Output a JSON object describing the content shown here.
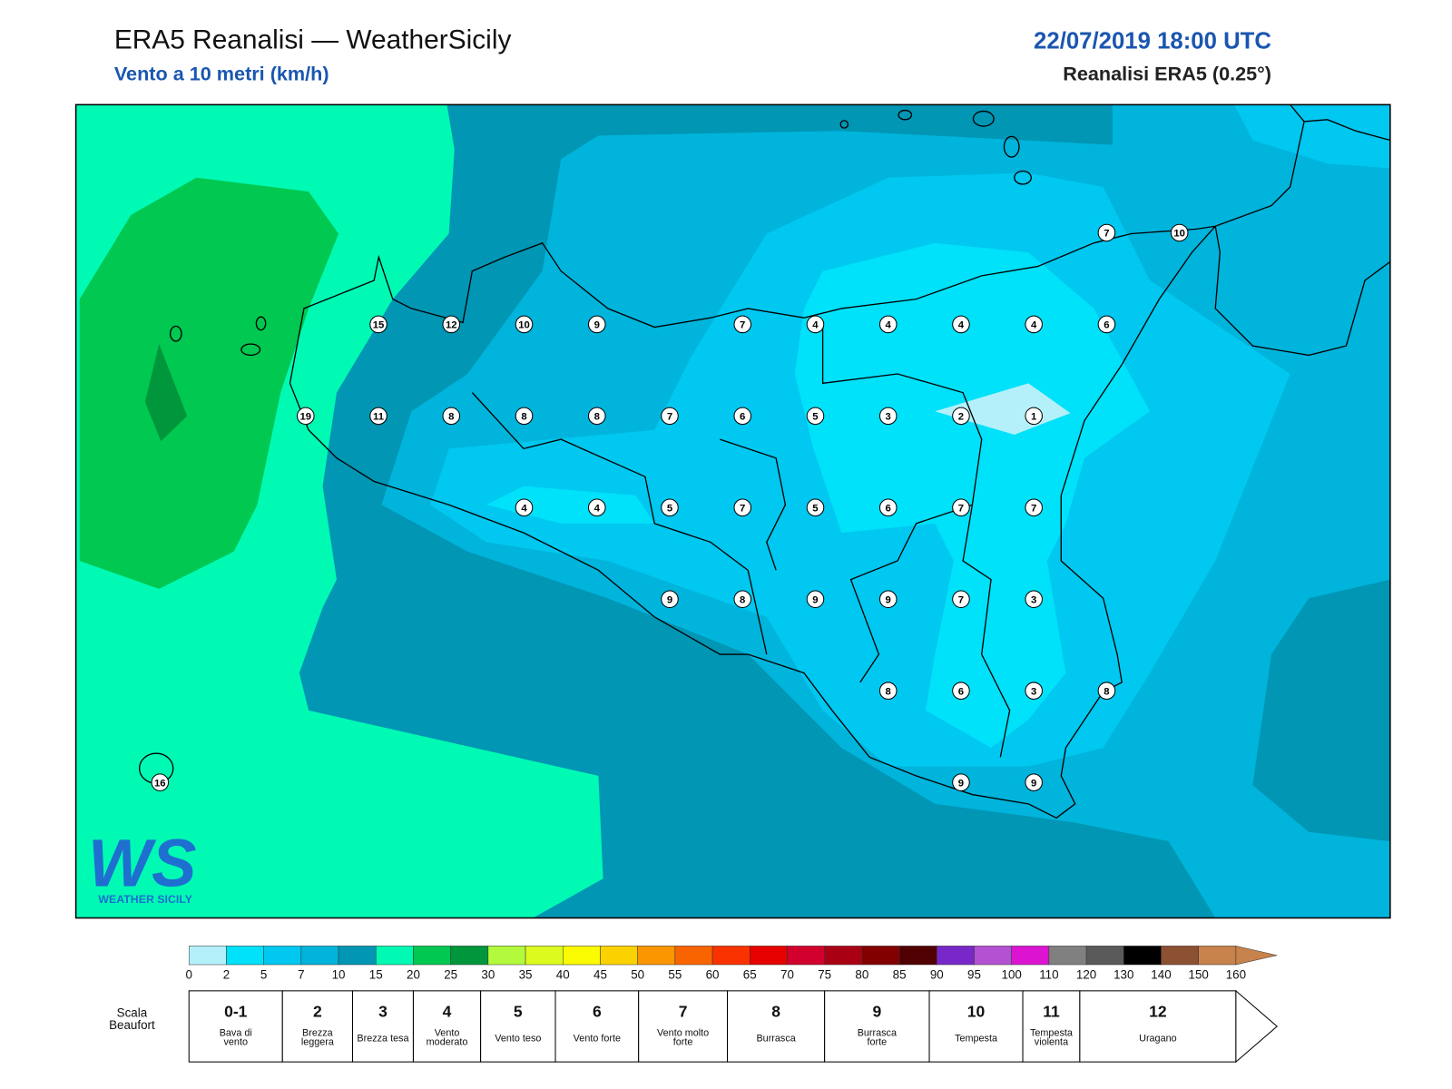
{
  "header": {
    "title": "ERA5 Reanalisi — WeatherSicily",
    "subtitle": "Vento a 10 metri (km/h)",
    "datetime": "22/07/2019 18:00 UTC",
    "source": "Reanalisi ERA5 (0.25°)"
  },
  "wind_grid": [
    [
      null,
      null,
      null,
      null,
      null,
      null,
      null,
      null,
      null,
      null,
      null,
      null,
      null,
      7,
      10
    ],
    [
      null,
      null,
      null,
      15,
      12,
      10,
      9,
      null,
      7,
      4,
      4,
      4,
      4,
      6,
      null
    ],
    [
      null,
      null,
      19,
      11,
      8,
      8,
      8,
      7,
      6,
      5,
      3,
      2,
      1,
      null,
      null
    ],
    [
      null,
      null,
      null,
      null,
      null,
      4,
      4,
      5,
      7,
      5,
      6,
      7,
      7,
      null,
      null
    ],
    [
      null,
      null,
      null,
      null,
      null,
      null,
      null,
      9,
      8,
      9,
      9,
      7,
      3,
      null,
      null
    ],
    [
      null,
      null,
      null,
      null,
      null,
      null,
      null,
      null,
      null,
      null,
      8,
      6,
      3,
      8,
      null
    ],
    [
      16,
      null,
      null,
      null,
      null,
      null,
      null,
      null,
      null,
      null,
      null,
      9,
      9,
      null,
      null
    ]
  ],
  "logo": {
    "mark": "WS",
    "name": "WEATHER SICILY"
  },
  "colorbar": {
    "levels": [
      0,
      2,
      5,
      7,
      10,
      15,
      20,
      25,
      30,
      35,
      40,
      45,
      50,
      55,
      60,
      65,
      70,
      75,
      80,
      85,
      90,
      95,
      100,
      110,
      120,
      130,
      140,
      150,
      160
    ],
    "colors": [
      "#b4f0fa",
      "#00e1fa",
      "#00c8f0",
      "#00b4dc",
      "#0096b4",
      "#00fab4",
      "#00c850",
      "#00963c",
      "#b4fa3c",
      "#dcfa1e",
      "#fafa00",
      "#fad200",
      "#fa9600",
      "#fa6400",
      "#fa3200",
      "#e60000",
      "#d2002d",
      "#aa0014",
      "#820000",
      "#500000",
      "#7828c8",
      "#b450d2",
      "#dc14d2",
      "#808080",
      "#5a5a5a",
      "#000000",
      "#8c5032",
      "#c8824b"
    ]
  },
  "beaufort": {
    "label": "Scala Beaufort",
    "grades": [
      {
        "force": "0-1",
        "name": "Bava di vento"
      },
      {
        "force": "2",
        "name": "Brezza leggera"
      },
      {
        "force": "3",
        "name": "Brezza tesa"
      },
      {
        "force": "4",
        "name": "Vento moderato"
      },
      {
        "force": "5",
        "name": "Vento teso"
      },
      {
        "force": "6",
        "name": "Vento forte"
      },
      {
        "force": "7",
        "name": "Vento molto forte"
      },
      {
        "force": "8",
        "name": "Burrasca"
      },
      {
        "force": "9",
        "name": "Burrasca forte"
      },
      {
        "force": "10",
        "name": "Tempesta"
      },
      {
        "force": "11",
        "name": "Tempesta violenta"
      },
      {
        "force": "12",
        "name": "Uragano"
      }
    ]
  }
}
